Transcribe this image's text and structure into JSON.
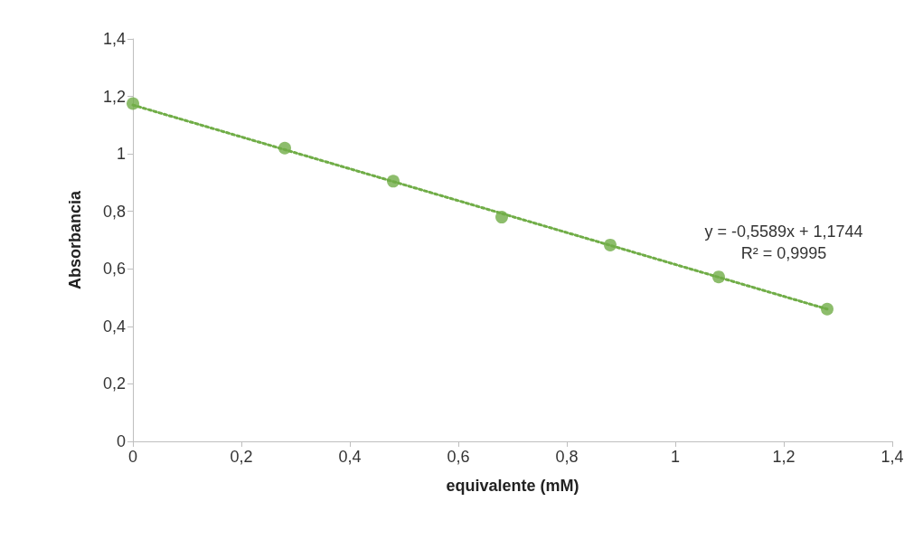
{
  "chart_data": {
    "type": "scatter",
    "xlabel": "equivalente (mM)",
    "ylabel": "Absorbancia",
    "xlim": [
      0,
      1.4
    ],
    "xticks": [
      0,
      {
        "value": 0.2,
        "label": "0,2"
      },
      {
        "value": 0.4,
        "label": "0,4"
      },
      {
        "value": 0.6,
        "label": "0,6"
      },
      {
        "value": 0.8,
        "label": "0,8"
      },
      1,
      {
        "value": 1.2,
        "label": "1,2"
      },
      {
        "value": 1.4,
        "label": "1,4"
      }
    ],
    "ylim": [
      0,
      1.4
    ],
    "yticks": [
      0,
      {
        "value": 0.2,
        "label": "0,2"
      },
      {
        "value": 0.4,
        "label": "0,4"
      },
      {
        "value": 0.6,
        "label": "0,6"
      },
      {
        "value": 0.8,
        "label": "0,8"
      },
      1,
      {
        "value": 1.2,
        "label": "1,2"
      },
      {
        "value": 1.4,
        "label": "1,4"
      }
    ],
    "series": [
      {
        "color": "#70ad47",
        "x": [
          0,
          0.28,
          0.48,
          0.68,
          0.88,
          1.08,
          1.28
        ],
        "values": [
          1.175,
          1.02,
          0.905,
          0.78,
          0.683,
          0.572,
          0.46
        ],
        "marker": "circle"
      },
      {
        "type": "line",
        "color": "#70ad47",
        "x": [
          0,
          1.28
        ],
        "values": [
          1.17,
          0.46
        ],
        "line_style": "dotted",
        "marker": "none"
      }
    ],
    "annotations": [
      "y = -0,5589x + 1,1744\nR² = 0,9995"
    ],
    "grid": false
  }
}
